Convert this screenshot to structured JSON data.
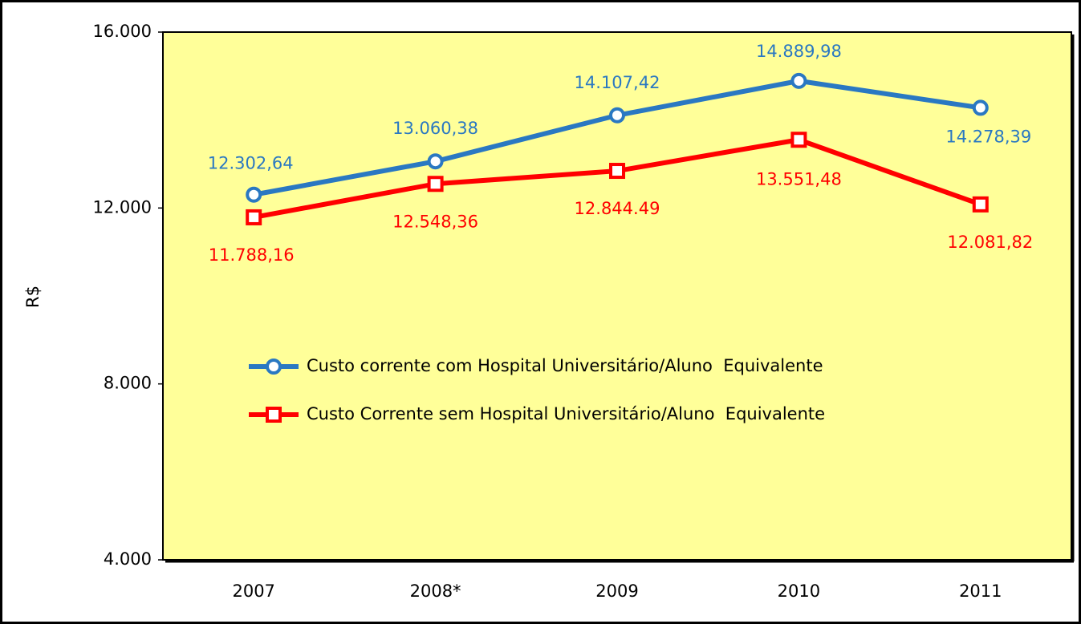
{
  "chart_data": {
    "type": "line",
    "categories": [
      "2007",
      "2008*",
      "2009",
      "2010",
      "2011"
    ],
    "series": [
      {
        "name": "Custo corrente com Hospital Universitário/Aluno  Equivalente",
        "color": "#2a78c2",
        "marker": "circle",
        "values": [
          12302.64,
          13060.38,
          14107.42,
          14889.98,
          14278.39
        ],
        "value_labels": [
          "12.302,64",
          "13.060,38",
          "14.107,42",
          "14.889,98",
          "14.278,39"
        ]
      },
      {
        "name": "Custo Corrente sem Hospital Universitário/Aluno  Equivalente",
        "color": "#ff0000",
        "marker": "square",
        "values": [
          11788.16,
          12548.36,
          12844.49,
          13551.48,
          12081.82
        ],
        "value_labels": [
          "11.788,16",
          "12.548,36",
          "12.844.49",
          "13.551,48",
          "12.081,82"
        ]
      }
    ],
    "ylabel": "R$",
    "ylim": [
      4000,
      16000
    ],
    "yticks": [
      {
        "value": 4000,
        "label": "4.000"
      },
      {
        "value": 8000,
        "label": "8.000"
      },
      {
        "value": 12000,
        "label": "12.000"
      },
      {
        "value": 16000,
        "label": "16.000"
      }
    ],
    "legend": "center",
    "plot_background": "#ffff99"
  }
}
